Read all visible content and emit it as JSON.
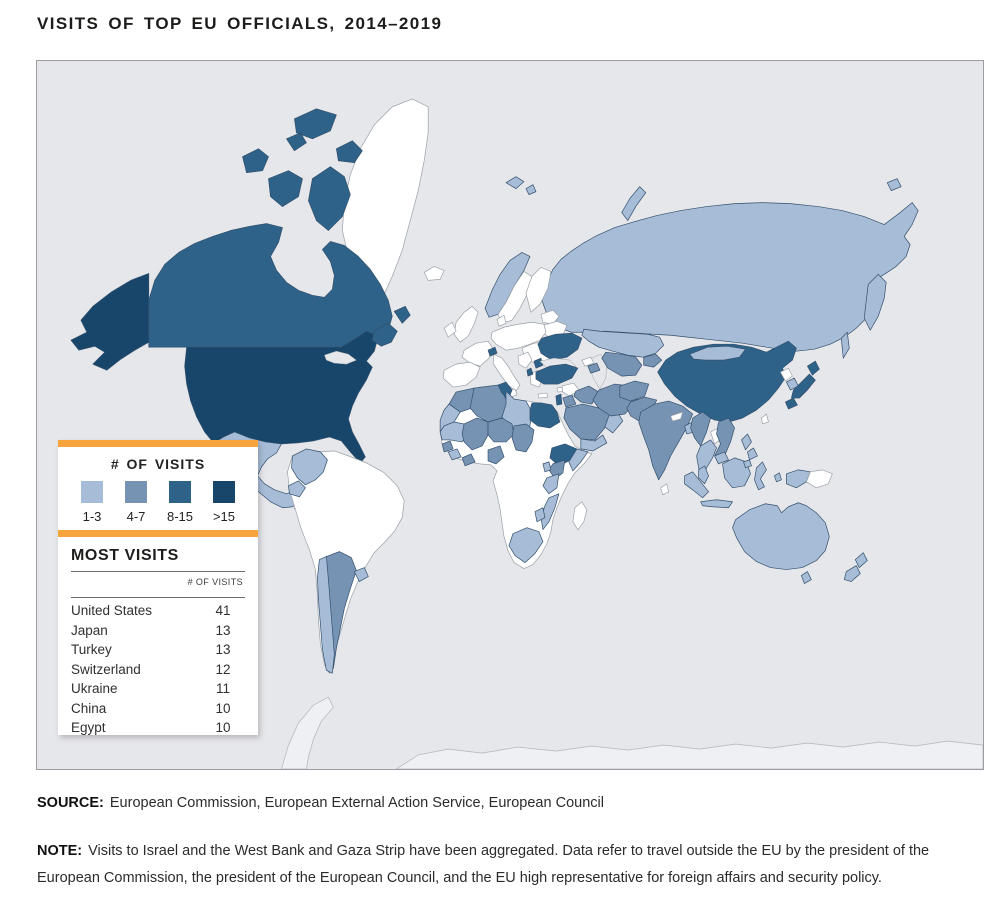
{
  "page_title": "VISITS OF TOP EU OFFICIALS, 2014–2019",
  "colors": {
    "ocean": "#e6e7ea",
    "no_data_land": "#ffffff",
    "antarctica": "#eef0f3",
    "accent_orange": "#f7a43c",
    "border_colored": "#33506e",
    "border_nodata": "#9aa1a8",
    "class_colors": {
      "1-3": "#a7bcd6",
      "4-7": "#7793b4",
      "8-15": "#2e6288",
      ">15": "#17466a",
      "none": "#ffffff",
      "water": "#e6e7ea",
      "antarctica": "#eef0f3"
    }
  },
  "legend": {
    "title": "# OF VISITS",
    "classes": [
      {
        "label": "1-3",
        "color": "#a7bcd6"
      },
      {
        "label": "4-7",
        "color": "#7793b4"
      },
      {
        "label": "8-15",
        "color": "#2e6288"
      },
      {
        "label": ">15",
        "color": "#17466a"
      }
    ]
  },
  "most_visits": {
    "title": "MOST VISITS",
    "column_header": "# OF VISITS",
    "rows": [
      {
        "country": "United States",
        "visits": "41"
      },
      {
        "country": "Japan",
        "visits": "13"
      },
      {
        "country": "Turkey",
        "visits": "13"
      },
      {
        "country": "Switzerland",
        "visits": "12"
      },
      {
        "country": "Ukraine",
        "visits": "11"
      },
      {
        "country": "China",
        "visits": "10"
      },
      {
        "country": "Egypt",
        "visits": "10"
      }
    ]
  },
  "source": {
    "label": "SOURCE:",
    "text": "European Commission, European External Action Service, European Council"
  },
  "note": {
    "label": "NOTE:",
    "text": "Visits to Israel and the West Bank and Gaza Strip have been aggregated. Data refer to travel outside the EU by the president of the European Commission, the president of the European Council, and the EU high representative for foreign affairs and security policy."
  },
  "map": {
    "regions": [
      {
        "id": "antarctica_peninsula",
        "class": "antarctica"
      },
      {
        "id": "antarctica_main",
        "class": "antarctica"
      },
      {
        "id": "greenland",
        "class": "none"
      },
      {
        "id": "canada_archipelago",
        "class": "8-15"
      },
      {
        "id": "canada",
        "class": "8-15"
      },
      {
        "id": "alaska",
        "class": ">15"
      },
      {
        "id": "usa",
        "class": ">15"
      },
      {
        "id": "canada_maritime",
        "class": "8-15"
      },
      {
        "id": "newfoundland",
        "class": "8-15"
      },
      {
        "id": "great_lakes",
        "class": "water"
      },
      {
        "id": "mexico",
        "class": "1-3"
      },
      {
        "id": "baja",
        "class": "1-3"
      },
      {
        "id": "central_america",
        "class": "1-3"
      },
      {
        "id": "nicaragua",
        "class": "none"
      },
      {
        "id": "cuba",
        "class": "none"
      },
      {
        "id": "hispaniola",
        "class": "none"
      },
      {
        "id": "south_america",
        "class": "none"
      },
      {
        "id": "colombia",
        "class": "1-3"
      },
      {
        "id": "ecuador",
        "class": "1-3"
      },
      {
        "id": "argentina",
        "class": "4-7"
      },
      {
        "id": "chile",
        "class": "1-3"
      },
      {
        "id": "uruguay",
        "class": "1-3"
      },
      {
        "id": "iceland",
        "class": "none"
      },
      {
        "id": "uk",
        "class": "none"
      },
      {
        "id": "ireland",
        "class": "none"
      },
      {
        "id": "russia",
        "class": "1-3"
      },
      {
        "id": "kamchatka",
        "class": "1-3"
      },
      {
        "id": "sakhalin",
        "class": "1-3"
      },
      {
        "id": "wrangel",
        "class": "1-3"
      },
      {
        "id": "novaya_zemlya",
        "class": "1-3"
      },
      {
        "id": "svalbard",
        "class": "1-3"
      },
      {
        "id": "norway",
        "class": "1-3"
      },
      {
        "id": "sweden",
        "class": "none"
      },
      {
        "id": "finland",
        "class": "none"
      },
      {
        "id": "denmark",
        "class": "none"
      },
      {
        "id": "baltics",
        "class": "none"
      },
      {
        "id": "belarus",
        "class": "none"
      },
      {
        "id": "central_europe",
        "class": "none"
      },
      {
        "id": "france",
        "class": "none"
      },
      {
        "id": "iberia",
        "class": "none"
      },
      {
        "id": "italy",
        "class": "none"
      },
      {
        "id": "sicily",
        "class": "none"
      },
      {
        "id": "balkans",
        "class": "none"
      },
      {
        "id": "west_balkans",
        "class": "none"
      },
      {
        "id": "greece",
        "class": "none"
      },
      {
        "id": "crete",
        "class": "none"
      },
      {
        "id": "switzerland",
        "class": "8-15"
      },
      {
        "id": "serbia",
        "class": "8-15"
      },
      {
        "id": "albania",
        "class": "8-15"
      },
      {
        "id": "ukraine",
        "class": "8-15"
      },
      {
        "id": "kazakhstan",
        "class": "1-3"
      },
      {
        "id": "caspian_sea",
        "class": "water"
      },
      {
        "id": "black_sea",
        "class": "water"
      },
      {
        "id": "georgia",
        "class": "none"
      },
      {
        "id": "azerbaijan",
        "class": "4-7"
      },
      {
        "id": "uzbekistan_turkmenistan",
        "class": "4-7"
      },
      {
        "id": "kyrgyzstan_tajikistan",
        "class": "4-7"
      },
      {
        "id": "africa",
        "class": "none"
      },
      {
        "id": "madagascar",
        "class": "none"
      },
      {
        "id": "morocco",
        "class": "4-7"
      },
      {
        "id": "western_sahara",
        "class": "1-3"
      },
      {
        "id": "algeria",
        "class": "4-7"
      },
      {
        "id": "tunisia",
        "class": "8-15"
      },
      {
        "id": "libya",
        "class": "1-3"
      },
      {
        "id": "egypt",
        "class": "8-15"
      },
      {
        "id": "mauritania",
        "class": "1-3"
      },
      {
        "id": "mali",
        "class": "4-7"
      },
      {
        "id": "niger",
        "class": "4-7"
      },
      {
        "id": "chad",
        "class": "4-7"
      },
      {
        "id": "senegal",
        "class": "4-7"
      },
      {
        "id": "guinea",
        "class": "1-3"
      },
      {
        "id": "ivory_coast",
        "class": "4-7"
      },
      {
        "id": "nigeria",
        "class": "4-7"
      },
      {
        "id": "ethiopia",
        "class": "8-15"
      },
      {
        "id": "somalia",
        "class": "1-3"
      },
      {
        "id": "kenya",
        "class": "4-7"
      },
      {
        "id": "uganda",
        "class": "1-3"
      },
      {
        "id": "tanzania",
        "class": "1-3"
      },
      {
        "id": "mozambique",
        "class": "1-3"
      },
      {
        "id": "zimbabwe",
        "class": "1-3"
      },
      {
        "id": "south_africa",
        "class": "1-3"
      },
      {
        "id": "turkey",
        "class": "8-15"
      },
      {
        "id": "cyprus",
        "class": "none"
      },
      {
        "id": "syria",
        "class": "none"
      },
      {
        "id": "iraq",
        "class": "4-7"
      },
      {
        "id": "israel",
        "class": "8-15"
      },
      {
        "id": "jordan",
        "class": "4-7"
      },
      {
        "id": "saudi_arabia",
        "class": "4-7"
      },
      {
        "id": "yemen",
        "class": "1-3"
      },
      {
        "id": "oman",
        "class": "1-3"
      },
      {
        "id": "iran",
        "class": "4-7"
      },
      {
        "id": "afghanistan",
        "class": "4-7"
      },
      {
        "id": "pakistan",
        "class": "4-7"
      },
      {
        "id": "india",
        "class": "4-7"
      },
      {
        "id": "sri_lanka",
        "class": "none"
      },
      {
        "id": "nepal",
        "class": "none"
      },
      {
        "id": "bangladesh",
        "class": "1-3"
      },
      {
        "id": "china",
        "class": "8-15"
      },
      {
        "id": "mongolia",
        "class": "1-3"
      },
      {
        "id": "north_korea",
        "class": "none"
      },
      {
        "id": "south_korea",
        "class": "1-3"
      },
      {
        "id": "taiwan",
        "class": "none"
      },
      {
        "id": "japan",
        "class": "8-15"
      },
      {
        "id": "myanmar",
        "class": "4-7"
      },
      {
        "id": "thailand",
        "class": "1-3"
      },
      {
        "id": "laos",
        "class": "none"
      },
      {
        "id": "vietnam",
        "class": "4-7"
      },
      {
        "id": "cambodia",
        "class": "1-3"
      },
      {
        "id": "malay_peninsula",
        "class": "1-3"
      },
      {
        "id": "sumatra",
        "class": "1-3"
      },
      {
        "id": "java",
        "class": "1-3"
      },
      {
        "id": "borneo",
        "class": "1-3"
      },
      {
        "id": "sulawesi",
        "class": "1-3"
      },
      {
        "id": "moluccas",
        "class": "1-3"
      },
      {
        "id": "west_new_guinea",
        "class": "1-3"
      },
      {
        "id": "papua_new_guinea",
        "class": "none"
      },
      {
        "id": "philippines",
        "class": "1-3"
      },
      {
        "id": "australia",
        "class": "1-3"
      },
      {
        "id": "tasmania",
        "class": "1-3"
      },
      {
        "id": "new_zealand",
        "class": "1-3"
      }
    ]
  }
}
